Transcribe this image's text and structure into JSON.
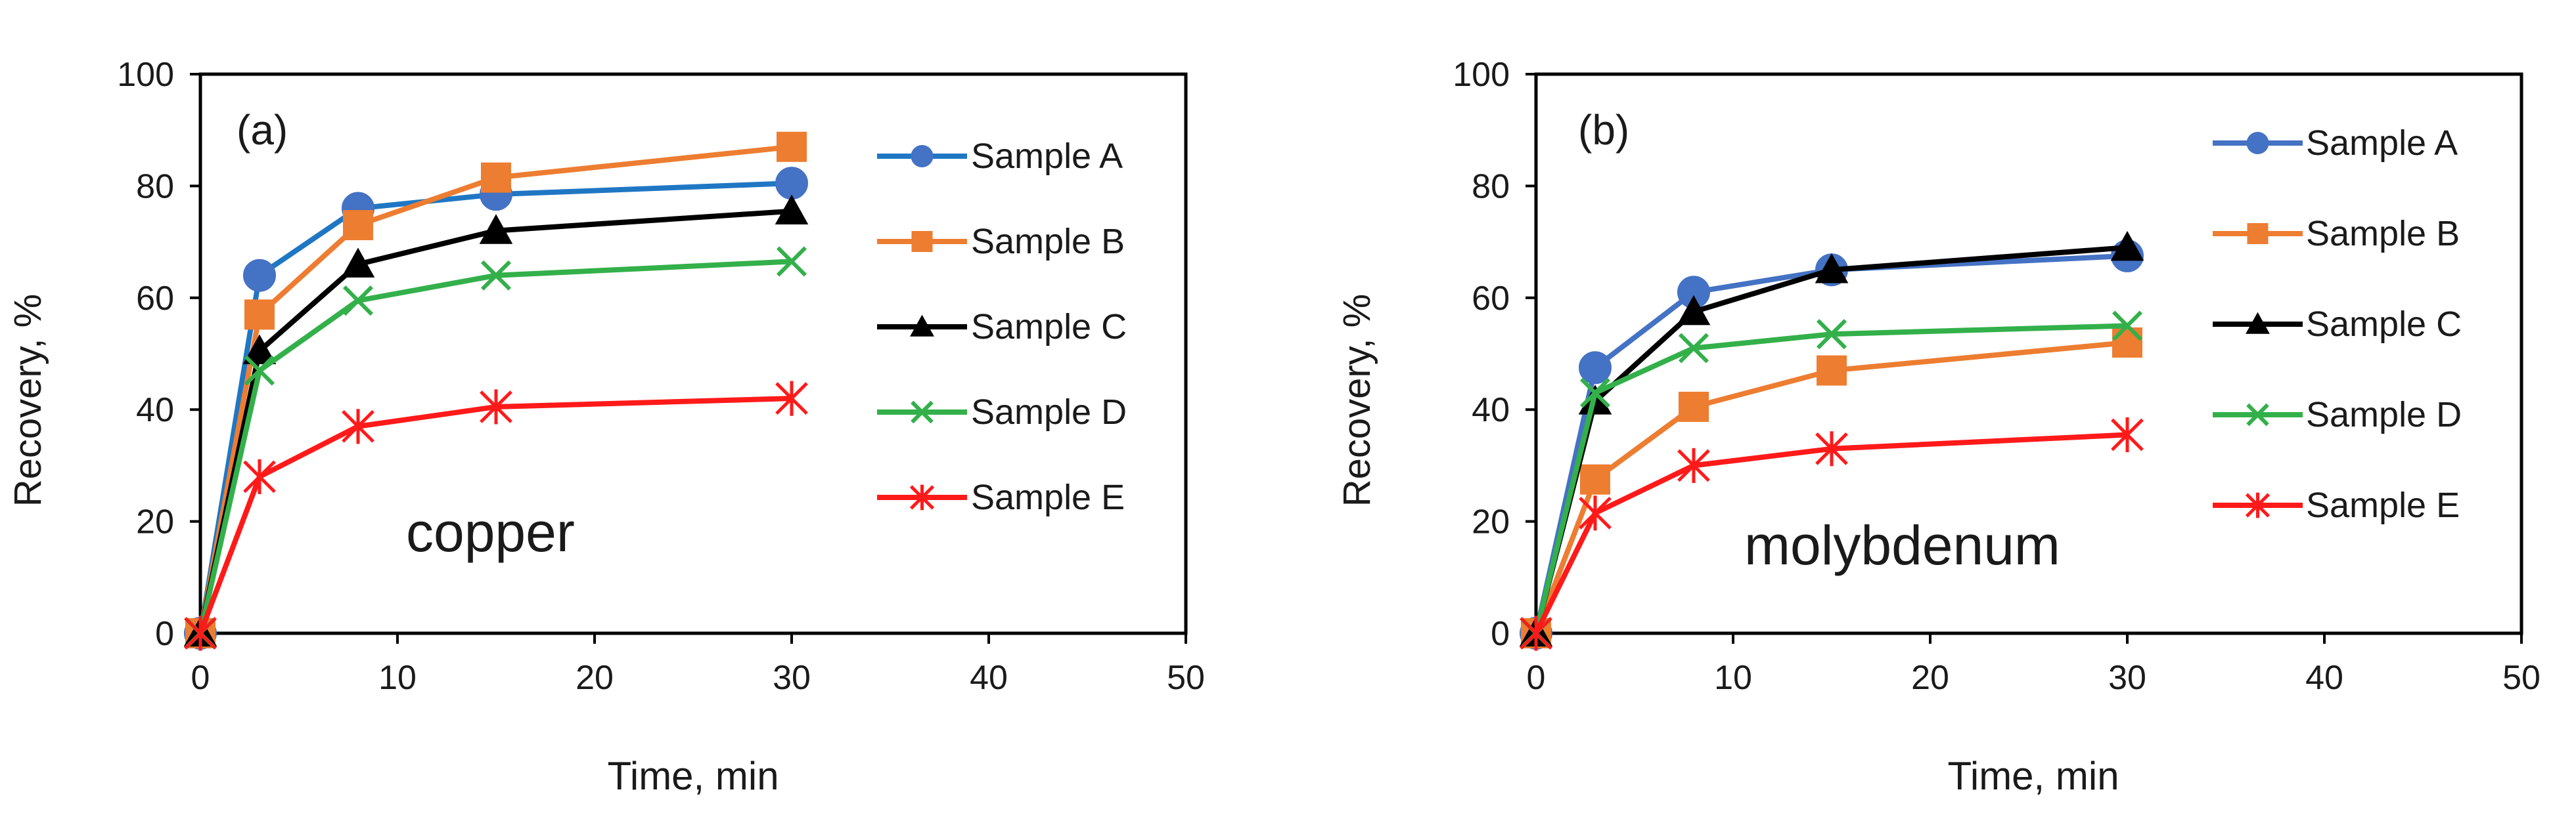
{
  "chart_data": [
    {
      "type": "line",
      "panel_label": "(a)",
      "annotation": "copper",
      "title": "",
      "xlabel": "Time, min",
      "ylabel": "Recovery, %",
      "xlim": [
        0,
        50
      ],
      "ylim": [
        0,
        100
      ],
      "xticks": [
        0,
        10,
        20,
        30,
        40,
        50
      ],
      "yticks": [
        0,
        20,
        40,
        60,
        80,
        100
      ],
      "grid": false,
      "legend_position": "right",
      "x": [
        0,
        3,
        8,
        15,
        30
      ],
      "series": [
        {
          "name": "Sample A",
          "color": "#4472C4",
          "line_color": "#1F77C4",
          "marker": "circle",
          "values": [
            0,
            64,
            76,
            78.5,
            80.5
          ]
        },
        {
          "name": "Sample B",
          "color": "#ED7D31",
          "line_color": "#ED7D31",
          "marker": "square",
          "values": [
            0,
            57,
            73,
            81.5,
            87
          ]
        },
        {
          "name": "Sample C",
          "color": "#000000",
          "line_color": "#000000",
          "marker": "triangle",
          "values": [
            0,
            50.5,
            66,
            72,
            75.5
          ]
        },
        {
          "name": "Sample D",
          "color": "#33B04A",
          "line_color": "#33B04A",
          "marker": "x",
          "values": [
            0,
            47,
            59.5,
            64,
            66.5
          ]
        },
        {
          "name": "Sample E",
          "color": "#FF1A1A",
          "line_color": "#FF1A1A",
          "marker": "star",
          "values": [
            0,
            28,
            37,
            40.5,
            42
          ]
        }
      ]
    },
    {
      "type": "line",
      "panel_label": "(b)",
      "annotation": "molybdenum",
      "title": "",
      "xlabel": "Time, min",
      "ylabel": "Recovery, %",
      "xlim": [
        0,
        50
      ],
      "ylim": [
        0,
        100
      ],
      "xticks": [
        0,
        10,
        20,
        30,
        40,
        50
      ],
      "yticks": [
        0,
        20,
        40,
        60,
        80,
        100
      ],
      "grid": false,
      "legend_position": "right",
      "x": [
        0,
        3,
        8,
        15,
        30
      ],
      "series": [
        {
          "name": "Sample A",
          "color": "#4472C4",
          "line_color": "#4472C4",
          "marker": "circle",
          "values": [
            0,
            47.5,
            61,
            65,
            67.5
          ]
        },
        {
          "name": "Sample B",
          "color": "#ED7D31",
          "line_color": "#ED7D31",
          "marker": "square",
          "values": [
            0,
            27.5,
            40.5,
            47,
            52
          ]
        },
        {
          "name": "Sample C",
          "color": "#000000",
          "line_color": "#000000",
          "marker": "triangle",
          "values": [
            0,
            41.5,
            57.5,
            65,
            69
          ]
        },
        {
          "name": "Sample D",
          "color": "#33B04A",
          "line_color": "#33B04A",
          "marker": "x",
          "values": [
            0,
            43,
            51,
            53.5,
            55
          ]
        },
        {
          "name": "Sample E",
          "color": "#FF1A1A",
          "line_color": "#FF1A1A",
          "marker": "star",
          "values": [
            0,
            21.5,
            30,
            33,
            35.5
          ]
        }
      ]
    }
  ]
}
